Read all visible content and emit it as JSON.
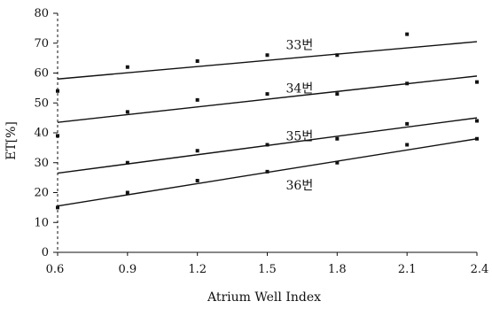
{
  "chart_data": {
    "type": "line",
    "xlabel": "Atrium Well Index",
    "ylabel": "ET[%]",
    "xlim": [
      0.6,
      2.4
    ],
    "ylim": [
      0,
      80
    ],
    "x_ticks": [
      "0.6",
      "0.9",
      "1.2",
      "1.5",
      "1.8",
      "2.1",
      "2.4"
    ],
    "y_ticks": [
      "0",
      "10",
      "20",
      "30",
      "40",
      "50",
      "60",
      "70",
      "80"
    ],
    "series": [
      {
        "name": "33번",
        "line": [
          [
            0.6,
            58
          ],
          [
            2.4,
            70.5
          ]
        ],
        "points": [
          [
            0.6,
            54
          ],
          [
            0.9,
            62
          ],
          [
            1.2,
            64
          ],
          [
            1.5,
            66
          ],
          [
            1.8,
            66
          ],
          [
            2.1,
            73
          ]
        ],
        "label_at": [
          1.58,
          68
        ]
      },
      {
        "name": "34번",
        "line": [
          [
            0.6,
            43.5
          ],
          [
            2.4,
            59
          ]
        ],
        "points": [
          [
            0.9,
            47
          ],
          [
            1.2,
            51
          ],
          [
            1.5,
            53
          ],
          [
            1.8,
            53
          ],
          [
            2.1,
            56.5
          ],
          [
            2.4,
            57
          ]
        ],
        "label_at": [
          1.58,
          53.5
        ]
      },
      {
        "name": "35번",
        "line": [
          [
            0.6,
            26.5
          ],
          [
            2.4,
            45
          ]
        ],
        "points": [
          [
            0.6,
            39
          ],
          [
            0.9,
            30
          ],
          [
            1.2,
            34
          ],
          [
            1.5,
            36
          ],
          [
            1.8,
            38
          ],
          [
            2.1,
            43
          ],
          [
            2.4,
            44
          ]
        ],
        "label_at": [
          1.58,
          37.5
        ]
      },
      {
        "name": "36번",
        "line": [
          [
            0.6,
            15.5
          ],
          [
            2.4,
            38
          ]
        ],
        "points": [
          [
            0.6,
            15
          ],
          [
            0.9,
            20
          ],
          [
            1.2,
            24
          ],
          [
            1.5,
            27
          ],
          [
            1.8,
            30
          ],
          [
            2.1,
            36
          ],
          [
            2.4,
            38
          ]
        ],
        "label_at": [
          1.58,
          21
        ]
      }
    ]
  }
}
